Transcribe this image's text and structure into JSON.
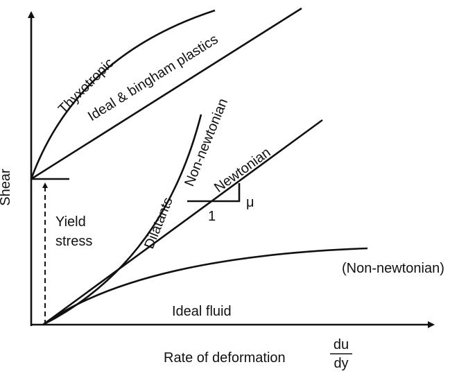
{
  "diagram": {
    "axes": {
      "y_label": "Shear",
      "x_label": "Rate of deformation",
      "x_fraction_top": "du",
      "x_fraction_bottom": "dy"
    },
    "curves": {
      "thyxotropic": "Thyxotropic",
      "bingham": "Ideal & bingham plastics",
      "non_newtonian_upper": "Non-newtonian",
      "dilatants": "Dilatants",
      "newtonian": "Newtonian",
      "non_newtonian_lower": "(Non-newtonian)",
      "ideal_fluid": "Ideal fluid"
    },
    "slope": {
      "rise": "μ",
      "run": "1"
    },
    "yield": {
      "line1": "Yield",
      "line2": "stress"
    }
  }
}
